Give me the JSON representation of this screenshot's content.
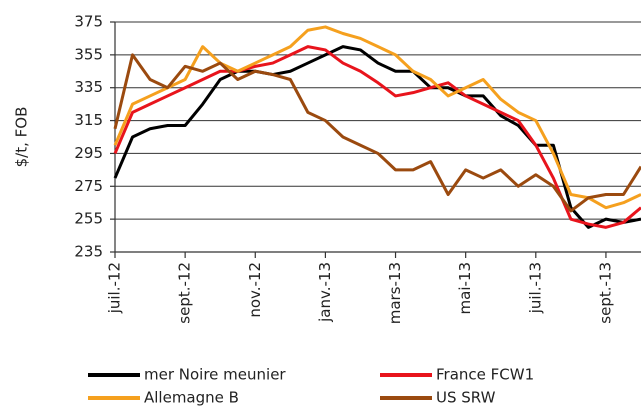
{
  "chart_data": {
    "type": "line",
    "y_label": "$/t, FOB",
    "x": [
      0,
      0.5,
      1,
      1.5,
      2,
      2.5,
      3,
      3.5,
      4,
      4.5,
      5,
      5.5,
      6,
      6.5,
      7,
      7.5,
      8,
      8.5,
      9,
      9.5,
      10,
      10.5,
      11,
      11.5,
      12,
      12.5,
      13,
      13.5,
      14,
      14.5,
      15
    ],
    "series": [
      {
        "name": "mer Noire meunier",
        "color": "#000000",
        "values": [
          280,
          305,
          310,
          312,
          312,
          325,
          340,
          345,
          345,
          343,
          345,
          350,
          355,
          360,
          358,
          350,
          345,
          345,
          335,
          335,
          330,
          330,
          318,
          312,
          300,
          300,
          262,
          250,
          255,
          253,
          255
        ]
      },
      {
        "name": "France FCW1",
        "color": "#e8141c",
        "values": [
          295,
          320,
          325,
          330,
          335,
          340,
          345,
          345,
          348,
          350,
          355,
          360,
          358,
          350,
          345,
          338,
          330,
          332,
          335,
          338,
          330,
          325,
          320,
          315,
          300,
          280,
          255,
          252,
          250,
          253,
          262
        ]
      },
      {
        "name": "Allemagne B",
        "color": "#f5a01e",
        "values": [
          300,
          325,
          330,
          335,
          340,
          360,
          350,
          345,
          350,
          355,
          360,
          370,
          372,
          368,
          365,
          360,
          355,
          345,
          340,
          330,
          335,
          340,
          328,
          320,
          315,
          295,
          270,
          268,
          262,
          265,
          270
        ]
      },
      {
        "name": "US SRW",
        "color": "#9b4a0f",
        "values": [
          310,
          355,
          340,
          335,
          348,
          345,
          350,
          340,
          345,
          343,
          340,
          320,
          315,
          305,
          300,
          295,
          285,
          285,
          290,
          270,
          285,
          280,
          285,
          275,
          282,
          275,
          260,
          268,
          270,
          270,
          287
        ]
      }
    ],
    "xlim": [
      0,
      15
    ],
    "xticks": [
      {
        "value": 0,
        "label": "juil.-12"
      },
      {
        "value": 2,
        "label": "sept.-12"
      },
      {
        "value": 4,
        "label": "nov.-12"
      },
      {
        "value": 6,
        "label": "janv.-13"
      },
      {
        "value": 8,
        "label": "mars-13"
      },
      {
        "value": 10,
        "label": "mai-13"
      },
      {
        "value": 12,
        "label": "juil.-13"
      },
      {
        "value": 14,
        "label": "sept.-13"
      }
    ],
    "ylim": [
      235,
      375
    ],
    "yticks": [
      235,
      255,
      275,
      295,
      315,
      335,
      355,
      375
    ],
    "grid": true
  }
}
